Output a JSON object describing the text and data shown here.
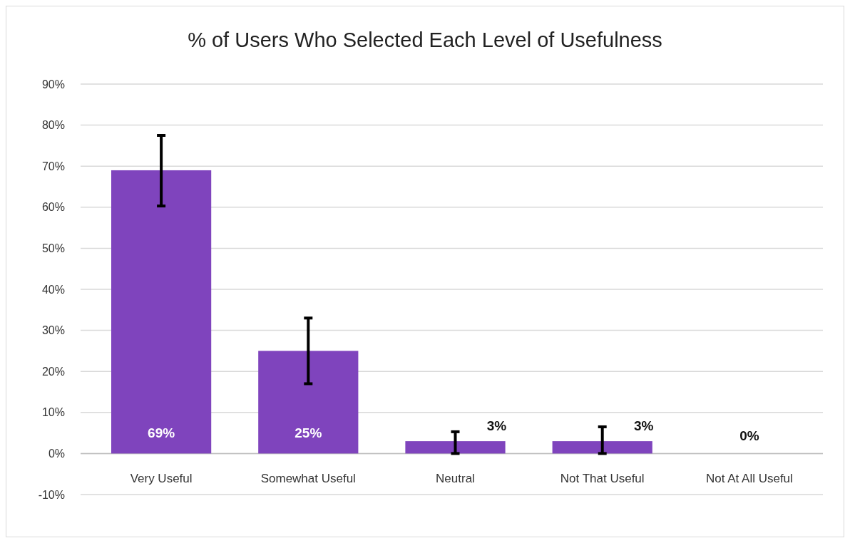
{
  "chart_data": {
    "type": "bar",
    "title": "% of Users Who Selected Each Level of Usefulness",
    "categories": [
      "Very Useful",
      "Somewhat Useful",
      "Neutral",
      "Not That Useful",
      "Not At All Useful"
    ],
    "values": [
      69,
      25,
      3,
      3,
      0
    ],
    "value_labels": [
      "69%",
      "25%",
      "3%",
      "3%",
      "0%"
    ],
    "errors": [
      [
        60.3,
        77.5
      ],
      [
        17,
        33
      ],
      [
        0,
        5.3
      ],
      [
        0,
        6.5
      ],
      null
    ],
    "color": "#7f44bd",
    "ylim": [
      -10,
      90
    ],
    "yticks": [
      {
        "value": -10,
        "label": "-10%"
      },
      {
        "value": 0,
        "label": "0%"
      },
      {
        "value": 10,
        "label": "10%"
      },
      {
        "value": 20,
        "label": "20%"
      },
      {
        "value": 30,
        "label": "30%"
      },
      {
        "value": 40,
        "label": "40%"
      },
      {
        "value": 50,
        "label": "50%"
      },
      {
        "value": 60,
        "label": "60%"
      },
      {
        "value": 70,
        "label": "70%"
      },
      {
        "value": 80,
        "label": "80%"
      },
      {
        "value": 90,
        "label": "90%"
      }
    ],
    "grid": "y"
  }
}
